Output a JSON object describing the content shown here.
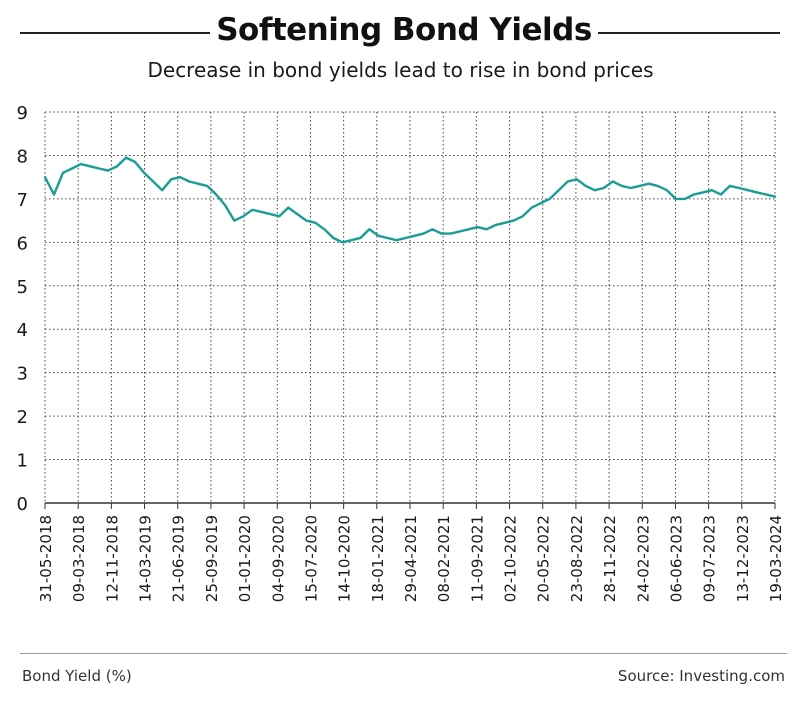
{
  "header": {
    "title": "Softening Bond Yields",
    "subtitle": "Decrease in bond yields lead to rise in bond prices"
  },
  "footer": {
    "left_label": "Bond Yield (%)",
    "right_label": "Source: Investing.com"
  },
  "colors": {
    "line": "#1a9e94",
    "grid": "#444444",
    "axis": "#333333",
    "text": "#1a1a1a"
  },
  "chart_data": {
    "type": "line",
    "title": "Softening Bond Yields",
    "subtitle": "Decrease in bond yields lead to rise in bond prices",
    "xlabel": "",
    "ylabel": "Bond Yield (%)",
    "ylim": [
      0,
      9
    ],
    "yticks": [
      0,
      1,
      2,
      3,
      4,
      5,
      6,
      7,
      8,
      9
    ],
    "grid": true,
    "x_tick_labels": [
      "31-05-2018",
      "09-03-2018",
      "12-11-2018",
      "14-03-2019",
      "21-06-2019",
      "25-09-2019",
      "01-01-2020",
      "04-09-2020",
      "15-07-2020",
      "14-10-2020",
      "18-01-2021",
      "29-04-2021",
      "08-02-2021",
      "11-09-2021",
      "02-10-2022",
      "20-05-2022",
      "23-08-2022",
      "28-11-2022",
      "24-02-2023",
      "06-06-2023",
      "09-07-2023",
      "13-12-2023",
      "19-03-2024"
    ],
    "series": [
      {
        "values": [
          7.5,
          7.1,
          7.6,
          7.7,
          7.8,
          7.75,
          7.7,
          7.65,
          7.75,
          7.95,
          7.85,
          7.6,
          7.4,
          7.2,
          7.45,
          7.5,
          7.4,
          7.35,
          7.3,
          7.1,
          6.85,
          6.5,
          6.6,
          6.75,
          6.7,
          6.65,
          6.6,
          6.8,
          6.65,
          6.5,
          6.45,
          6.3,
          6.1,
          6.0,
          6.05,
          6.1,
          6.3,
          6.15,
          6.1,
          6.05,
          6.1,
          6.15,
          6.2,
          6.3,
          6.2,
          6.2,
          6.25,
          6.3,
          6.35,
          6.3,
          6.4,
          6.45,
          6.5,
          6.6,
          6.8,
          6.9,
          7.0,
          7.2,
          7.4,
          7.45,
          7.3,
          7.2,
          7.25,
          7.4,
          7.3,
          7.25,
          7.3,
          7.35,
          7.3,
          7.2,
          7.0,
          7.0,
          7.1,
          7.15,
          7.2,
          7.1,
          7.3,
          7.25,
          7.2,
          7.15,
          7.1,
          7.05
        ]
      }
    ]
  }
}
